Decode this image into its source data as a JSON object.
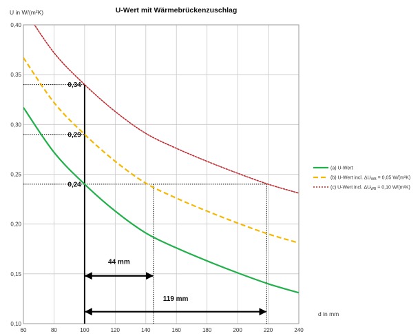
{
  "chart_data": {
    "type": "line",
    "title": "U-Wert mit Wärmebrückenzuschlag",
    "xlabel": "d in mm",
    "ylabel": "U in W/(m²K)",
    "xlim": [
      60,
      240
    ],
    "ylim": [
      0.1,
      0.4
    ],
    "x_ticks": [
      "60",
      "80",
      "100",
      "120",
      "140",
      "160",
      "180",
      "200",
      "220",
      "240"
    ],
    "y_ticks": [
      "0,10",
      "0,15",
      "0,20",
      "0,25",
      "0,30",
      "0,35",
      "0,40"
    ],
    "grid": true,
    "legend_position": "right",
    "x": [
      60,
      80,
      100,
      120,
      140,
      160,
      180,
      200,
      220,
      240
    ],
    "series": [
      {
        "name": "(a) U-Wert",
        "legend_main": "(a) U-Wert",
        "legend_tail": "",
        "legend_sub": "",
        "color": "#22b04a",
        "dash": "",
        "width": 2.2,
        "values": [
          0.317,
          0.272,
          0.24,
          0.213,
          0.191,
          0.176,
          0.163,
          0.151,
          0.14,
          0.131
        ]
      },
      {
        "name": "(b) U-Wert incl. ΔU_WB = 0,05 W/(m²K)",
        "legend_main": "(b) U-Wert incl. ΔU",
        "legend_sub": "WB",
        "legend_tail": " = 0,05 W/(m²K)",
        "color": "#f5b700",
        "dash": "7,4",
        "width": 2.2,
        "values": [
          0.367,
          0.322,
          0.29,
          0.263,
          0.241,
          0.226,
          0.213,
          0.201,
          0.19,
          0.181
        ]
      },
      {
        "name": "(c) U-Wert incl. ΔU_WB = 0,10 W/(m²K)",
        "legend_main": "(c) U-Wert incl. ΔU",
        "legend_sub": "WB",
        "legend_tail": " = 0,10 W/(m²K)",
        "color": "#c0282d",
        "dash": "2,2",
        "width": 1.6,
        "values": [
          0.417,
          0.372,
          0.34,
          0.313,
          0.291,
          0.276,
          0.263,
          0.251,
          0.24,
          0.231
        ]
      }
    ],
    "annotations": {
      "marker_line_x": 100,
      "value_labels": [
        {
          "text": "0,34",
          "y": 0.34
        },
        {
          "text": "0,29",
          "y": 0.29
        },
        {
          "text": "0,24",
          "y": 0.24
        }
      ],
      "reference_line_y": 0.24,
      "reference_end_x": 219,
      "drop_lines_x": [
        145,
        219
      ],
      "arrows": [
        {
          "text": "44 mm",
          "from": 100,
          "to": 145,
          "y": 0.148,
          "label_y": 0.16
        },
        {
          "text": "119 mm",
          "from": 100,
          "to": 219,
          "y": 0.112,
          "label_y": 0.123
        }
      ]
    }
  }
}
